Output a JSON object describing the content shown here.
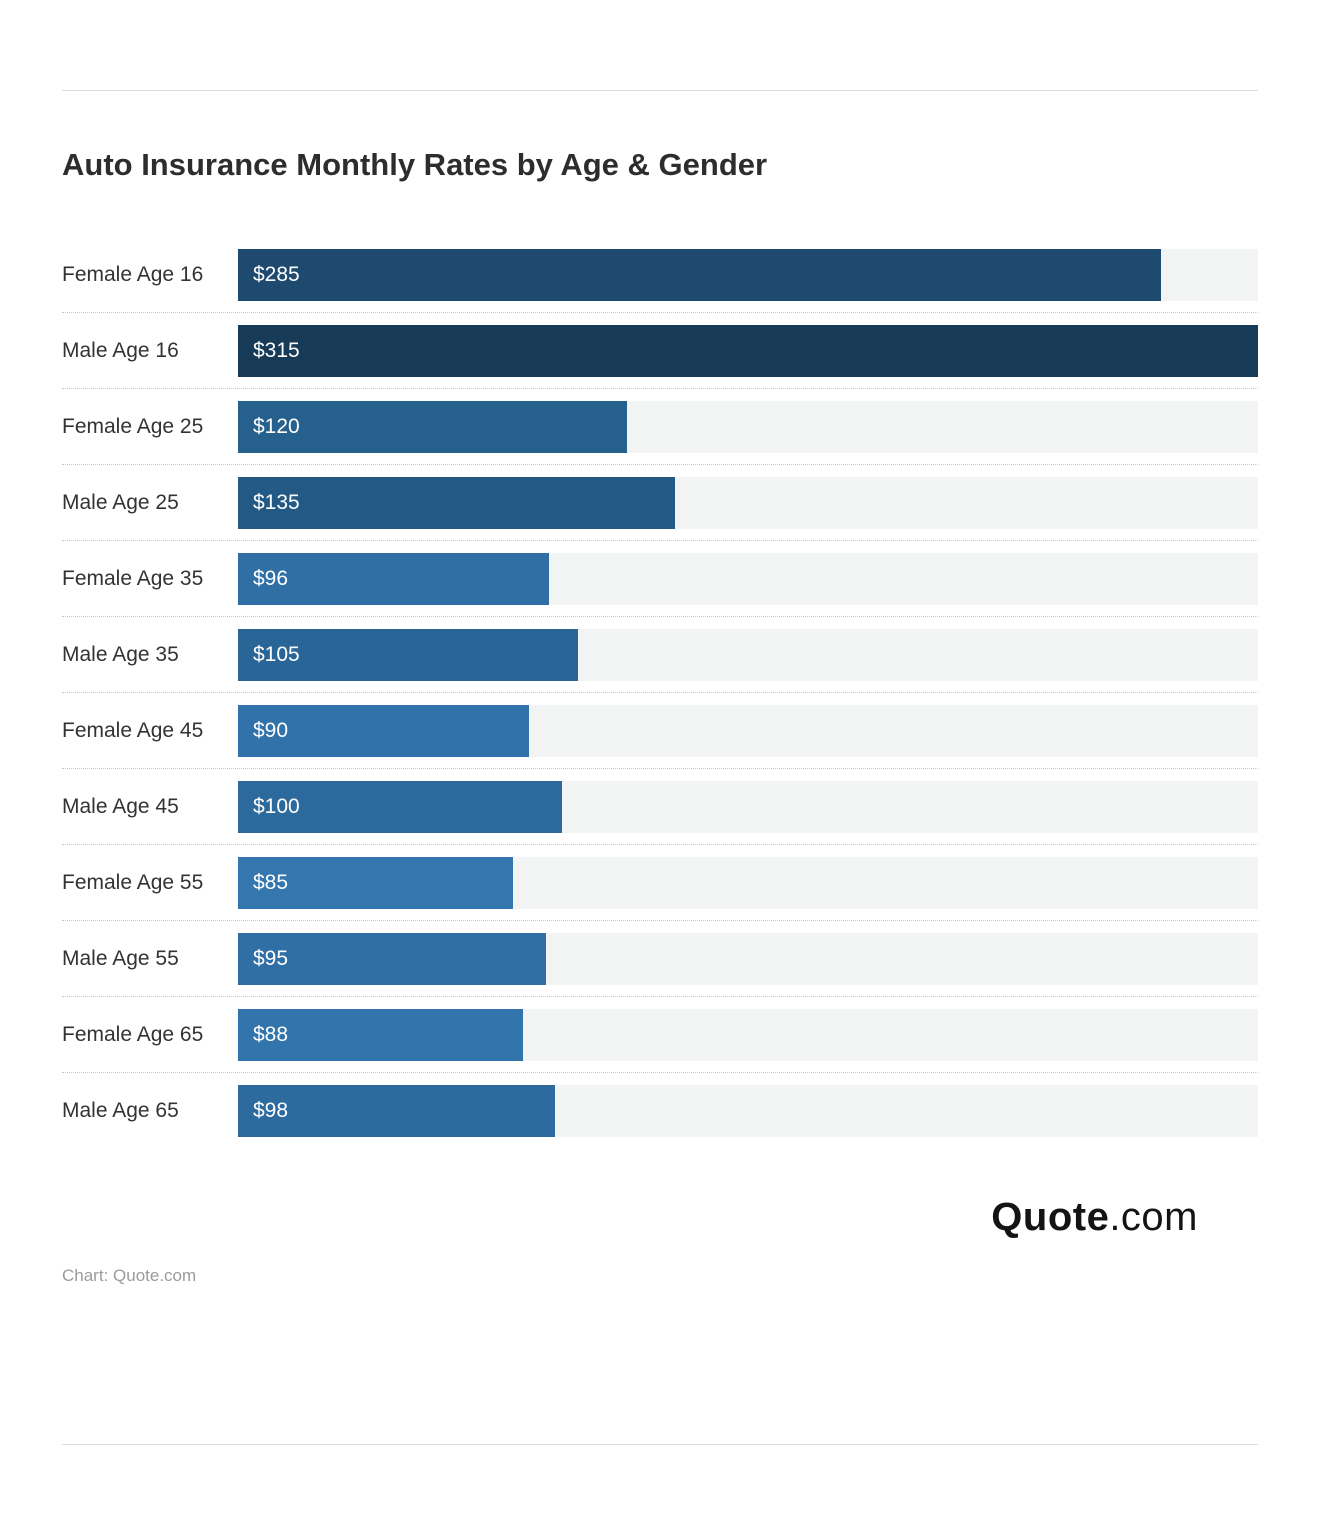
{
  "page": {
    "caption": "Chart: Quote.com",
    "logo": {
      "bold": "Quote",
      "light": ".com"
    }
  },
  "chart_data": {
    "type": "bar",
    "orientation": "horizontal",
    "title": "Auto Insurance Monthly Rates by Age & Gender",
    "categories": [
      "Female Age 16",
      "Male Age 16",
      "Female Age 25",
      "Male Age 25",
      "Female Age 35",
      "Male Age 35",
      "Female Age 45",
      "Male Age 45",
      "Female Age 55",
      "Male Age 55",
      "Female Age 65",
      "Male Age 65"
    ],
    "values": [
      285,
      315,
      120,
      135,
      96,
      105,
      90,
      100,
      85,
      95,
      88,
      98
    ],
    "value_labels": [
      "$285",
      "$315",
      "$120",
      "$135",
      "$96",
      "$105",
      "$90",
      "$100",
      "$85",
      "$95",
      "$88",
      "$98"
    ],
    "xlim": [
      0,
      315
    ],
    "bar_colors": [
      "#1d4a6e",
      "#173a57",
      "#26608c",
      "#225a85",
      "#2f6fa5",
      "#2a6597",
      "#3072a9",
      "#2c699c",
      "#3377ae",
      "#2f6fa5",
      "#3275ac",
      "#2d6b9f"
    ],
    "track_color": "#f2f3f3",
    "legend": "none",
    "grid": "dotted-row-separators"
  }
}
